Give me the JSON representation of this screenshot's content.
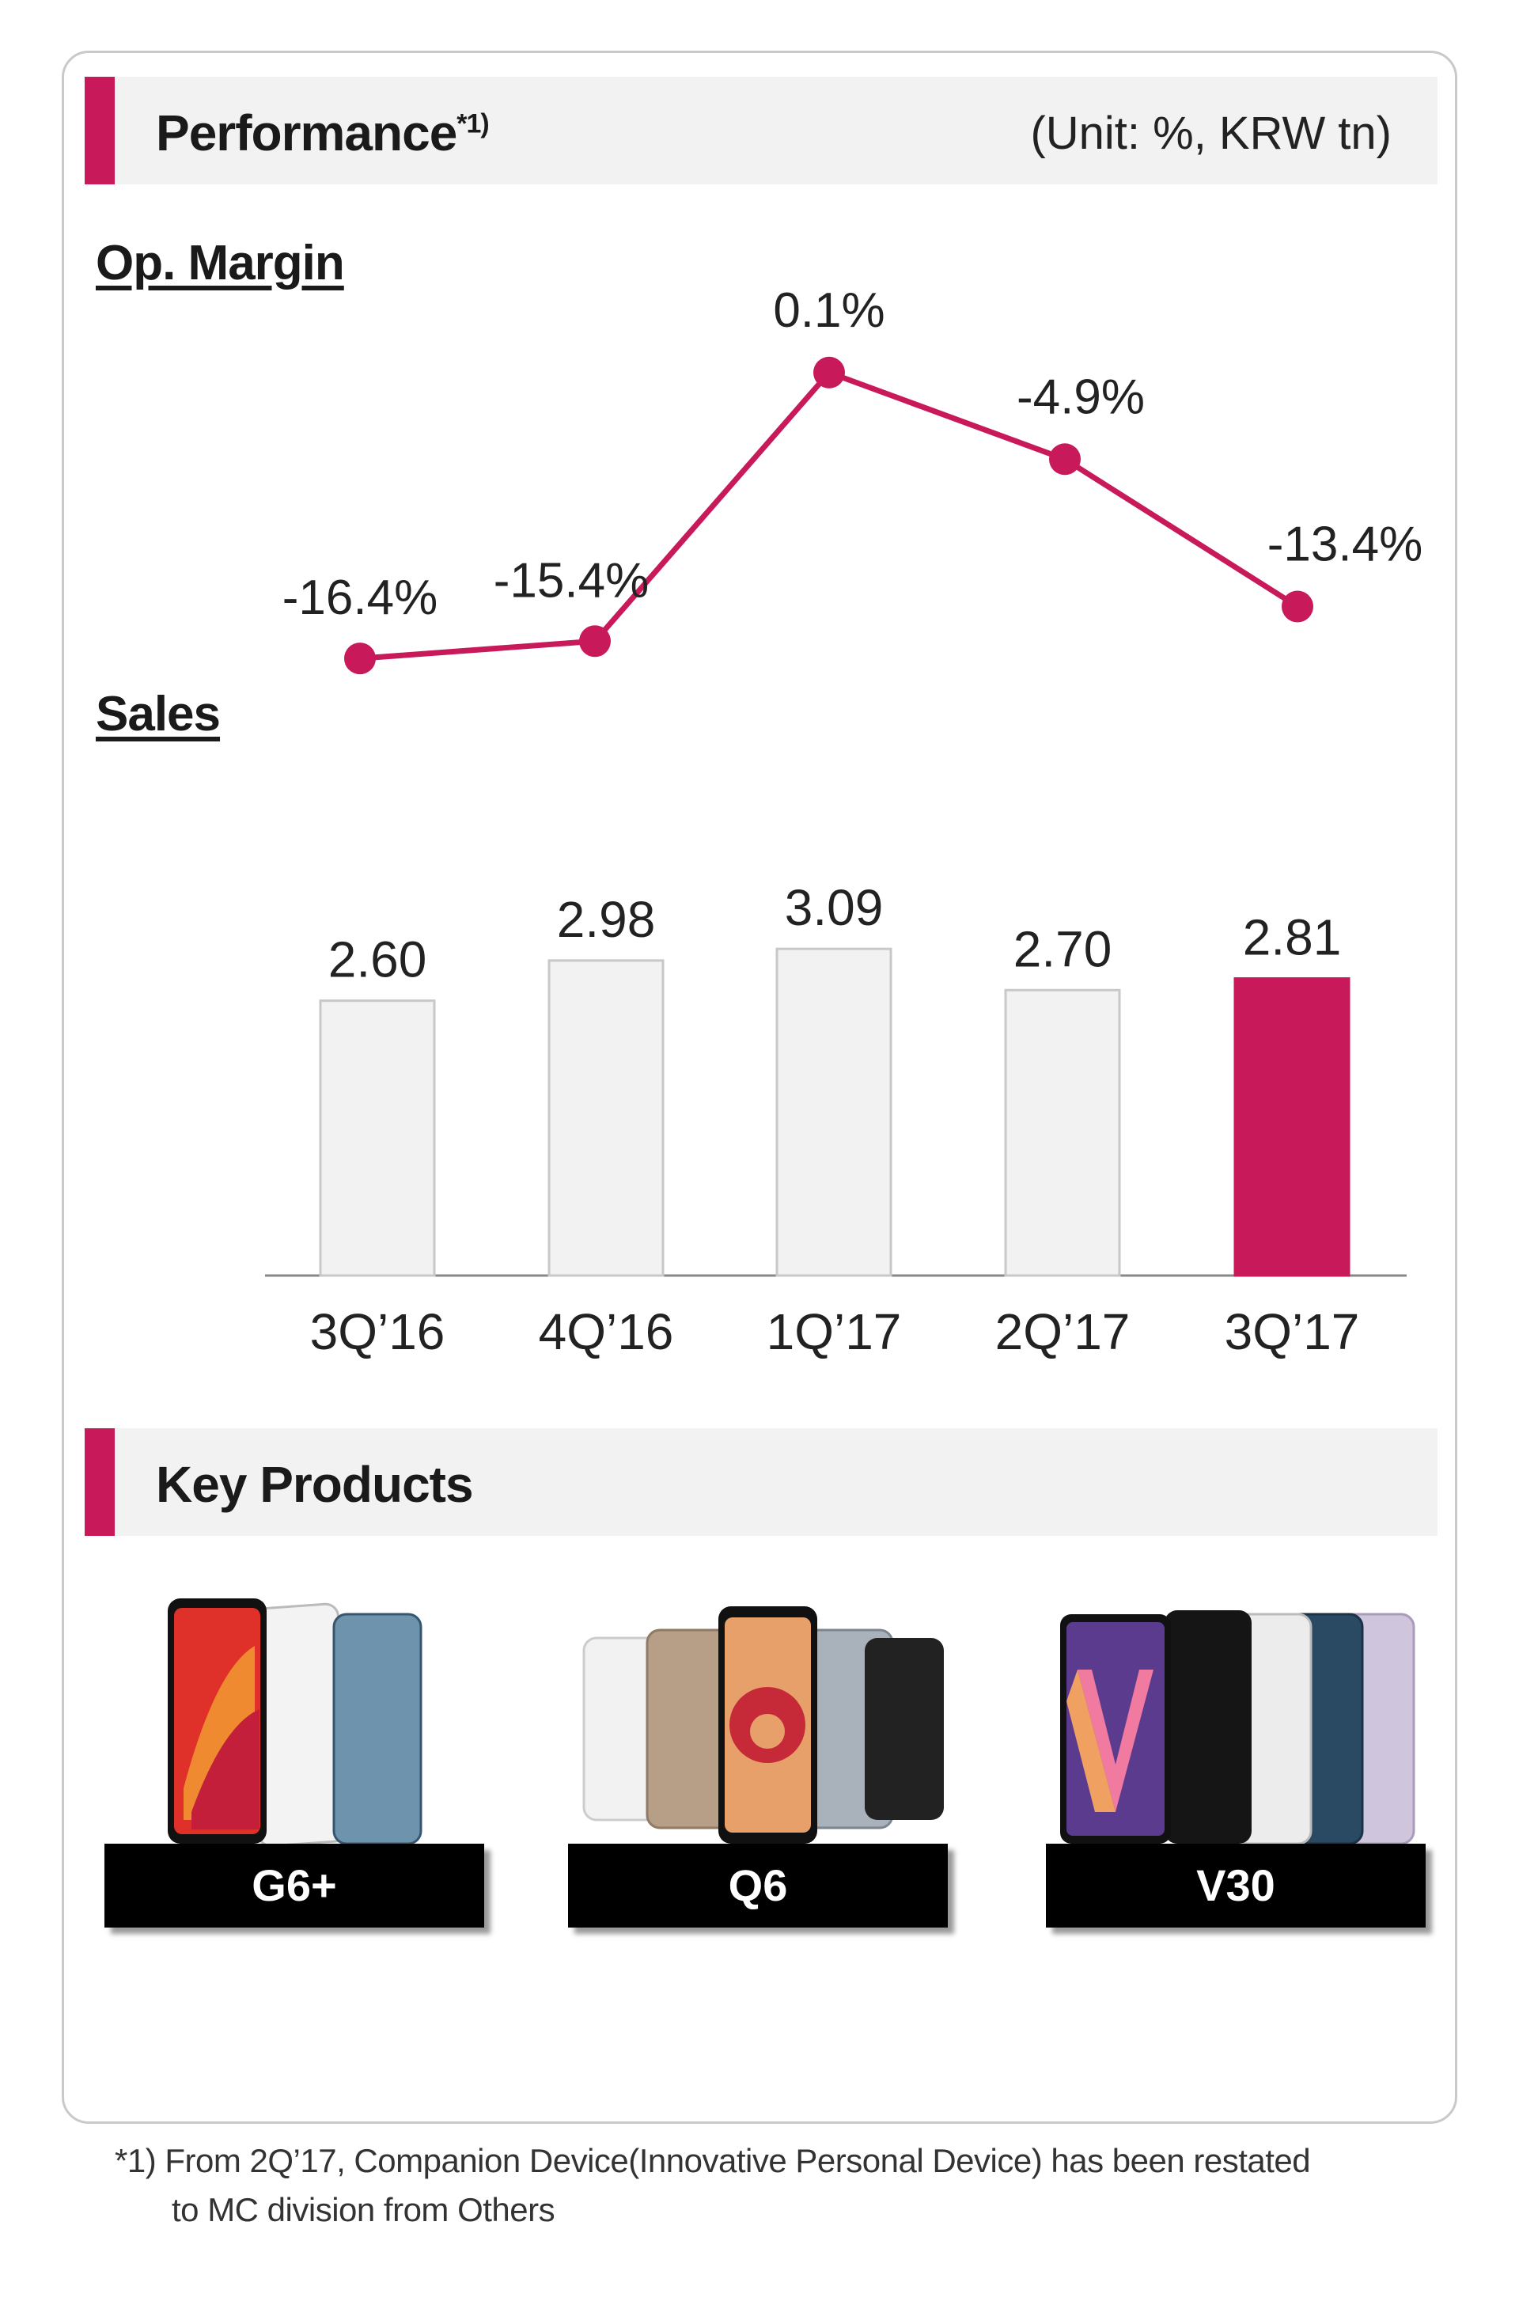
{
  "performance": {
    "title": "Performance",
    "footnote_marker": "*1)",
    "unit": "(Unit: %, KRW tn)"
  },
  "op_margin_label": "Op. Margin",
  "sales_label": "Sales",
  "chart_data": [
    {
      "type": "line",
      "title": "Op. Margin",
      "categories": [
        "3Q'16",
        "4Q'16",
        "1Q'17",
        "2Q'17",
        "3Q'17"
      ],
      "values": [
        -16.4,
        -15.4,
        0.1,
        -4.9,
        -13.4
      ],
      "data_labels": [
        "-16.4%",
        "-15.4%",
        "0.1%",
        "-4.9%",
        "-13.4%"
      ],
      "unit": "%",
      "color": "#c8195a"
    },
    {
      "type": "bar",
      "title": "Sales",
      "categories": [
        "3Q'16",
        "4Q'16",
        "1Q'17",
        "2Q'17",
        "3Q'17"
      ],
      "tick_labels": [
        "3Q’16",
        "4Q’16",
        "1Q’17",
        "2Q’17",
        "3Q’17"
      ],
      "values": [
        2.6,
        2.98,
        3.09,
        2.7,
        2.81
      ],
      "data_labels": [
        "2.60",
        "2.98",
        "3.09",
        "2.70",
        "2.81"
      ],
      "unit": "KRW tn",
      "highlight_index": 4,
      "bar_color": "#f2f2f2",
      "highlight_color": "#c8195a"
    }
  ],
  "key_products": {
    "title": "Key Products",
    "items": [
      {
        "name": "G6+"
      },
      {
        "name": "Q6"
      },
      {
        "name": "V30"
      }
    ]
  },
  "footnote": {
    "line1": "*1) From 2Q’17, Companion Device(Innovative Personal Device) has been restated",
    "line2": "to MC division from Others"
  },
  "colors": {
    "accent": "#c8195a",
    "header_bg": "#f2f2f2"
  }
}
